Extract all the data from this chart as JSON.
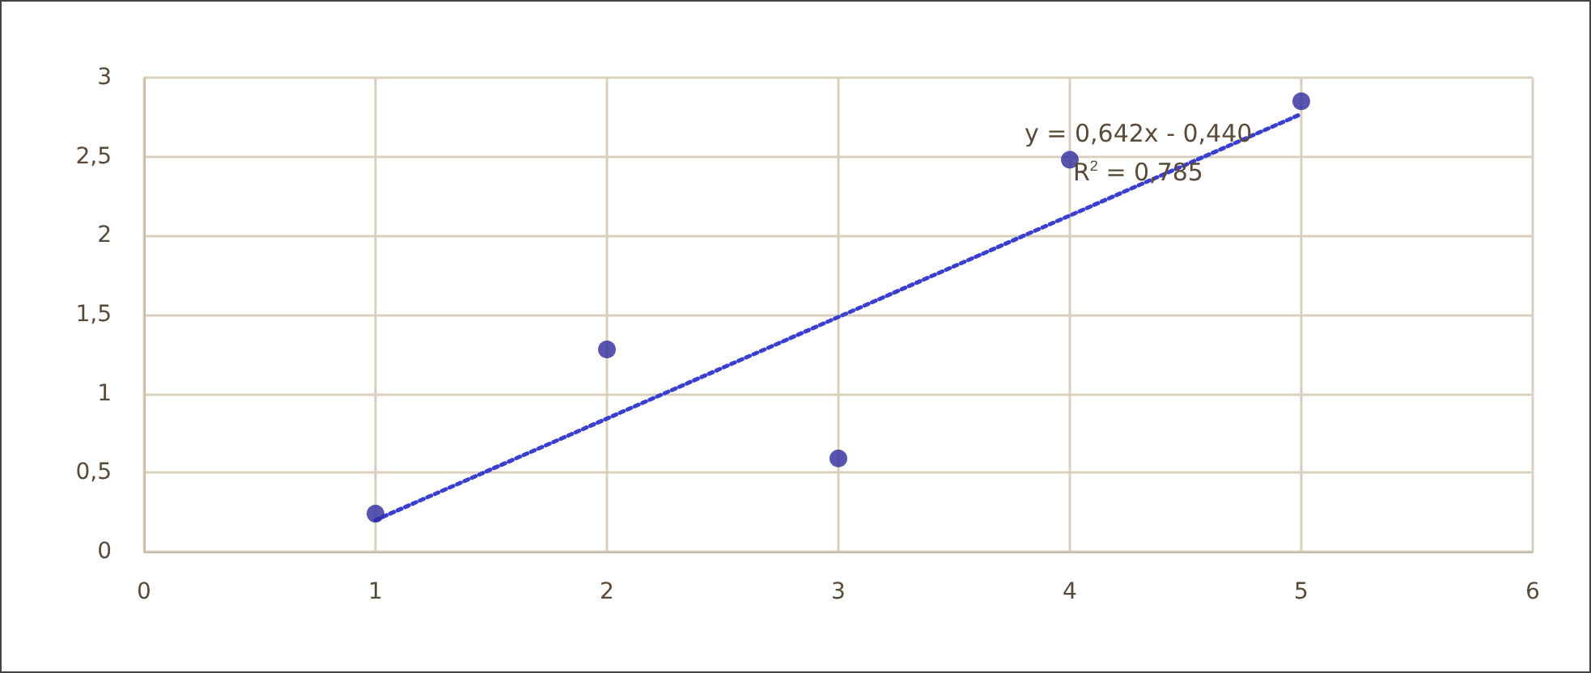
{
  "chart_data": {
    "type": "scatter",
    "x": [
      1,
      2,
      3,
      4,
      5
    ],
    "series": [
      {
        "color": "#2e2a9e",
        "marker": "circle",
        "values": [
          0.24,
          1.28,
          0.59,
          2.48,
          2.85
        ]
      },
      {
        "type": "line",
        "color": "#3a3fd0",
        "line_style": "dotted",
        "marker": "none",
        "x": [
          1,
          5
        ],
        "values": [
          0.2,
          2.77
        ]
      }
    ],
    "xlim": [
      0,
      6
    ],
    "xticks": [
      0,
      1,
      2,
      3,
      4,
      5,
      6
    ],
    "ylim": [
      0,
      3
    ],
    "yticks": [
      0,
      {
        "value": 0.5,
        "label": "0,5"
      },
      1,
      {
        "value": 1.5,
        "label": "1,5"
      },
      2,
      {
        "value": 2.5,
        "label": "2,5"
      },
      3
    ],
    "grid": true,
    "annotations": [
      "y = 0,642x - 0,440",
      "R$^{2}$ = 0,785"
    ]
  }
}
